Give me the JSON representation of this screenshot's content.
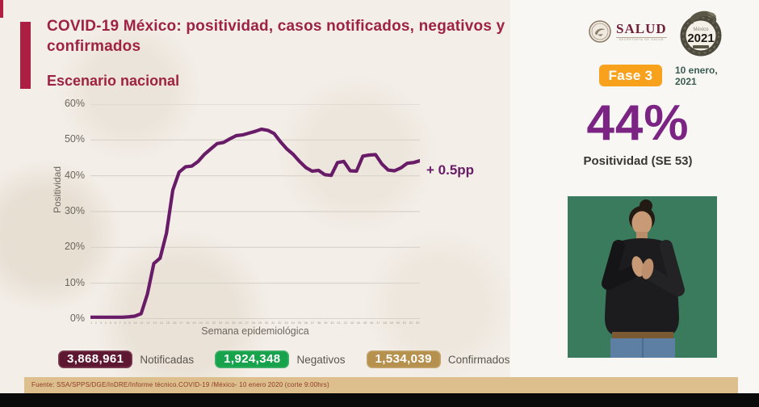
{
  "header": {
    "title": "COVID-19 México: positividad, casos notificados, negativos y confirmados",
    "subtitle": "Escenario nacional",
    "salud_logo": "SALUD",
    "salud_sublabel": "SECRETARÍA DE SALUD",
    "year_logo_caption": "México",
    "year_logo": "2021",
    "phase_badge": "Fase 3",
    "date_line1": "10 enero,",
    "date_line2": "2021"
  },
  "chart_data": {
    "type": "line",
    "series_name": "Positividad",
    "xlabel": "Semana epidemiológica",
    "ylabel": "Positividad",
    "ylim": [
      0,
      60
    ],
    "yticks": [
      "60%",
      "50%",
      "40%",
      "30%",
      "20%",
      "10%",
      "0%"
    ],
    "grid": true,
    "line_color": "#681b66",
    "annotation": "+ 0.5pp",
    "x": [
      1,
      2,
      3,
      4,
      5,
      6,
      7,
      8,
      9,
      10,
      11,
      12,
      13,
      14,
      15,
      16,
      17,
      18,
      19,
      20,
      21,
      22,
      23,
      24,
      25,
      26,
      27,
      28,
      29,
      30,
      31,
      32,
      33,
      34,
      35,
      36,
      37,
      38,
      39,
      40,
      41,
      42,
      43,
      44,
      45,
      46,
      47,
      48,
      49,
      50,
      51,
      52,
      53
    ],
    "values": [
      0.5,
      0.5,
      0.5,
      0.5,
      0.5,
      0.5,
      0.6,
      0.8,
      1.5,
      7,
      15.5,
      17,
      24,
      36,
      41,
      42.5,
      42.7,
      44,
      46,
      47.5,
      49,
      49.3,
      50.3,
      51.2,
      51.4,
      51.9,
      52.4,
      53,
      52.7,
      51.8,
      49.5,
      47.5,
      46,
      44,
      42.3,
      41.3,
      41.5,
      40.3,
      40.1,
      43.7,
      44,
      41.4,
      41.3,
      45.5,
      45.8,
      45.9,
      43.3,
      41.6,
      41.4,
      42.2,
      43.5,
      43.7,
      44.2
    ]
  },
  "highlight": {
    "value": "44%",
    "label": "Positividad (SE 53)"
  },
  "media": {
    "interpreter_box": "sign-language-interpreter-video"
  },
  "stats": [
    {
      "value": "3,868,961",
      "label": "Notificadas",
      "color": "#5e1730"
    },
    {
      "value": "1,924,348",
      "label": "Negativos",
      "color": "#17a24c"
    },
    {
      "value": "1,534,039",
      "label": "Confirmados",
      "color": "#b6914e"
    }
  ],
  "footer": {
    "source": "Fuente: SSA/SPPS/DGE/InDRE/Informe técnico.COVID-19 /México- 10 enero 2020 (corte 9:00hrs)"
  }
}
